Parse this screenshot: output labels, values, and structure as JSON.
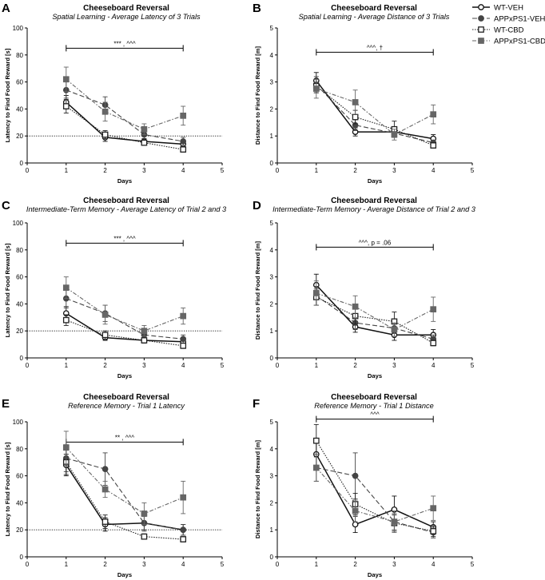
{
  "series_styles": {
    "WT-VEH": {
      "color": "#111111",
      "marker": "circle-open",
      "dash": ""
    },
    "APPxPS1-VEH": {
      "color": "#444444",
      "marker": "circle-filled",
      "dash": "6,3"
    },
    "WT-CBD": {
      "color": "#222222",
      "marker": "square-open",
      "dash": "1.5,1.5"
    },
    "APPxPS1-CBD": {
      "color": "#666666",
      "marker": "square-filled",
      "dash": "5,2,1.5,2"
    }
  },
  "legend": [
    "WT-VEH",
    "APPxPS1-VEH",
    "WT-CBD",
    "APPxPS1-CBD"
  ],
  "chart_data": [
    {
      "id": "A",
      "type": "line",
      "title": "Cheeseboard Reversal",
      "subtitle": "Spatial Learning - Average Latency of 3 Trials",
      "xlabel": "Days",
      "ylabel": "Latency to Find Food Reward [s]",
      "xlim": [
        0,
        5
      ],
      "ylim": [
        0,
        100
      ],
      "xticks": [
        0,
        1,
        2,
        3,
        4,
        5
      ],
      "yticks": [
        0,
        20,
        40,
        60,
        80,
        100
      ],
      "x": [
        1,
        2,
        3,
        4
      ],
      "reference_line": 20,
      "significance": {
        "text": "*** , ^^^",
        "from": 1,
        "to": 4,
        "y": 85
      },
      "series": [
        {
          "name": "WT-VEH",
          "values": [
            45,
            19,
            16,
            14
          ],
          "err": [
            5,
            3,
            2,
            2
          ]
        },
        {
          "name": "APPxPS1-VEH",
          "values": [
            54,
            43,
            21,
            16
          ],
          "err": [
            6,
            6,
            4,
            3
          ]
        },
        {
          "name": "WT-CBD",
          "values": [
            42,
            21,
            15,
            10
          ],
          "err": [
            5,
            3,
            2,
            2
          ]
        },
        {
          "name": "APPxPS1-CBD",
          "values": [
            62,
            38,
            25,
            35
          ],
          "err": [
            9,
            7,
            4,
            7
          ]
        }
      ]
    },
    {
      "id": "B",
      "type": "line",
      "title": "Cheeseboard Reversal",
      "subtitle": "Spatial Learning - Average Distance of 3 Trials",
      "xlabel": "Days",
      "ylabel": "Distance to Find Food Reward [m]",
      "xlim": [
        0,
        5
      ],
      "ylim": [
        0,
        5
      ],
      "xticks": [
        0,
        1,
        2,
        3,
        4,
        5
      ],
      "yticks": [
        0,
        1,
        2,
        3,
        4,
        5
      ],
      "x": [
        1,
        2,
        3,
        4
      ],
      "reference_line": null,
      "significance": {
        "text": "^^^, †",
        "from": 1,
        "to": 4,
        "y": 4.1
      },
      "series": [
        {
          "name": "WT-VEH",
          "values": [
            3.05,
            1.15,
            1.15,
            0.9
          ],
          "err": [
            0.3,
            0.15,
            0.15,
            0.15
          ]
        },
        {
          "name": "APPxPS1-VEH",
          "values": [
            2.9,
            1.4,
            1.1,
            0.75
          ],
          "err": [
            0.3,
            0.2,
            0.15,
            0.1
          ]
        },
        {
          "name": "WT-CBD",
          "values": [
            2.85,
            1.7,
            1.25,
            0.65
          ],
          "err": [
            0.25,
            0.25,
            0.3,
            0.1
          ]
        },
        {
          "name": "APPxPS1-CBD",
          "values": [
            2.75,
            2.25,
            1.05,
            1.8
          ],
          "err": [
            0.35,
            0.45,
            0.2,
            0.35
          ]
        }
      ]
    },
    {
      "id": "C",
      "type": "line",
      "title": "Cheeseboard Reversal",
      "subtitle": "Intermediate-Term Memory - Average Latency of Trial 2 and 3",
      "xlabel": "Days",
      "ylabel": "Latency to Find Food Reward [s]",
      "xlim": [
        0,
        5
      ],
      "ylim": [
        0,
        100
      ],
      "xticks": [
        0,
        1,
        2,
        3,
        4,
        5
      ],
      "yticks": [
        0,
        20,
        40,
        60,
        80,
        100
      ],
      "x": [
        1,
        2,
        3,
        4
      ],
      "reference_line": 20,
      "significance": {
        "text": "*** , ^^^",
        "from": 1,
        "to": 4,
        "y": 85
      },
      "series": [
        {
          "name": "WT-VEH",
          "values": [
            33,
            15,
            13,
            12
          ],
          "err": [
            5,
            2,
            2,
            2
          ]
        },
        {
          "name": "APPxPS1-VEH",
          "values": [
            44,
            33,
            17,
            14
          ],
          "err": [
            7,
            6,
            4,
            3
          ]
        },
        {
          "name": "WT-CBD",
          "values": [
            28,
            17,
            13,
            9
          ],
          "err": [
            4,
            3,
            2,
            2
          ]
        },
        {
          "name": "APPxPS1-CBD",
          "values": [
            52,
            32,
            20,
            31
          ],
          "err": [
            8,
            7,
            4,
            6
          ]
        }
      ]
    },
    {
      "id": "D",
      "type": "line",
      "title": "Cheeseboard Reversal",
      "subtitle": "Intermediate-Term Memory - Average Distance of Trial 2 and 3",
      "xlabel": "Days",
      "ylabel": "Distance to Find Food Reward [m]",
      "xlim": [
        0,
        5
      ],
      "ylim": [
        0,
        5
      ],
      "xticks": [
        0,
        1,
        2,
        3,
        4,
        5
      ],
      "yticks": [
        0,
        1,
        2,
        3,
        4,
        5
      ],
      "x": [
        1,
        2,
        3,
        4
      ],
      "reference_line": null,
      "significance": {
        "text": "^^^, p = .06",
        "from": 1,
        "to": 4,
        "y": 4.1
      },
      "series": [
        {
          "name": "WT-VEH",
          "values": [
            2.7,
            1.15,
            0.85,
            0.85
          ],
          "err": [
            0.4,
            0.2,
            0.2,
            0.2
          ]
        },
        {
          "name": "APPxPS1-VEH",
          "values": [
            2.3,
            1.3,
            1.1,
            0.7
          ],
          "err": [
            0.35,
            0.25,
            0.2,
            0.15
          ]
        },
        {
          "name": "WT-CBD",
          "values": [
            2.25,
            1.55,
            1.35,
            0.55
          ],
          "err": [
            0.3,
            0.3,
            0.35,
            0.1
          ]
        },
        {
          "name": "APPxPS1-CBD",
          "values": [
            2.4,
            1.9,
            1.05,
            1.8
          ],
          "err": [
            0.45,
            0.4,
            0.25,
            0.45
          ]
        }
      ]
    },
    {
      "id": "E",
      "type": "line",
      "title": "Cheeseboard Reversal",
      "subtitle": "Reference Memory - Trial 1 Latency",
      "xlabel": "Days",
      "ylabel": "Latency to Find Food Reward [s]",
      "xlim": [
        0,
        5
      ],
      "ylim": [
        0,
        100
      ],
      "xticks": [
        0,
        1,
        2,
        3,
        4,
        5
      ],
      "yticks": [
        0,
        20,
        40,
        60,
        80,
        100
      ],
      "x": [
        1,
        2,
        3,
        4
      ],
      "reference_line": 20,
      "significance": {
        "text": "** , ^^^",
        "from": 1,
        "to": 4,
        "y": 85
      },
      "series": [
        {
          "name": "WT-VEH",
          "values": [
            68,
            24,
            25,
            20
          ],
          "err": [
            8,
            5,
            5,
            4
          ]
        },
        {
          "name": "APPxPS1-VEH",
          "values": [
            73,
            65,
            25,
            20
          ],
          "err": [
            10,
            12,
            6,
            4
          ]
        },
        {
          "name": "WT-CBD",
          "values": [
            70,
            26,
            15,
            13
          ],
          "err": [
            9,
            5,
            2,
            2
          ]
        },
        {
          "name": "APPxPS1-CBD",
          "values": [
            81,
            50,
            32,
            44
          ],
          "err": [
            12,
            6,
            8,
            12
          ]
        }
      ]
    },
    {
      "id": "F",
      "type": "line",
      "title": "Cheeseboard Reversal",
      "subtitle": "Reference Memory - Trial 1 Distance",
      "xlabel": "Days",
      "ylabel": "Distance to Find Food Reward [m]",
      "xlim": [
        0,
        5
      ],
      "ylim": [
        0,
        5
      ],
      "xticks": [
        0,
        1,
        2,
        3,
        4,
        5
      ],
      "yticks": [
        0,
        1,
        2,
        3,
        4,
        5
      ],
      "x": [
        1,
        2,
        3,
        4
      ],
      "reference_line": null,
      "significance": {
        "text": "^^^",
        "from": 1,
        "to": 4,
        "y": 5.1
      },
      "series": [
        {
          "name": "WT-VEH",
          "values": [
            3.8,
            1.2,
            1.75,
            1.1
          ],
          "err": [
            0.5,
            0.3,
            0.5,
            0.2
          ]
        },
        {
          "name": "APPxPS1-VEH",
          "values": [
            3.3,
            3.0,
            1.3,
            0.9
          ],
          "err": [
            0.5,
            0.85,
            0.3,
            0.2
          ]
        },
        {
          "name": "WT-CBD",
          "values": [
            4.3,
            1.95,
            1.25,
            0.95
          ],
          "err": [
            0.6,
            0.4,
            0.3,
            0.2
          ]
        },
        {
          "name": "APPxPS1-CBD",
          "values": [
            3.3,
            1.7,
            1.3,
            1.8
          ],
          "err": [
            0.5,
            0.4,
            0.4,
            0.45
          ]
        }
      ]
    }
  ]
}
